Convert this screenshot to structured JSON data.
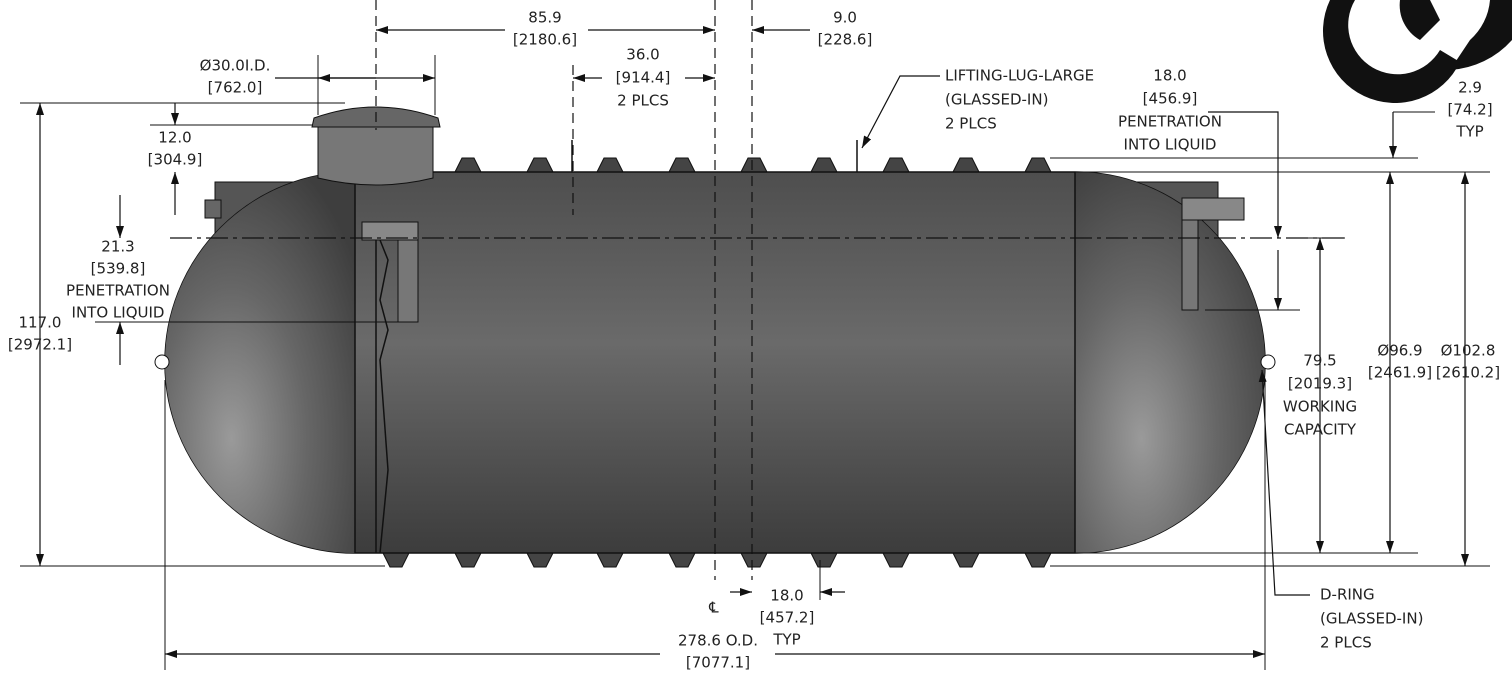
{
  "annotations": [
    {
      "lines": [
        "85.9",
        "[2180.6]"
      ]
    },
    {
      "lines": [
        "36.0",
        "[914.4]",
        "2 PLCS"
      ]
    },
    {
      "lines": [
        "9.0",
        "[228.6]"
      ]
    },
    {
      "lines": [
        "Ø30.0I.D.",
        "[762.0]"
      ]
    },
    {
      "lines": [
        "12.0",
        "[304.9]"
      ]
    },
    {
      "lines": [
        "21.3",
        "[539.8]",
        "PENETRATION",
        "INTO LIQUID"
      ]
    },
    {
      "lines": [
        "117.0",
        "[2972.1]"
      ]
    },
    {
      "lines": [
        "LIFTING-LUG-LARGE",
        "(GLASSED-IN)",
        "2 PLCS"
      ]
    },
    {
      "lines": [
        "18.0",
        "[456.9]",
        "PENETRATION",
        "INTO LIQUID"
      ]
    },
    {
      "lines": [
        "2.9",
        "[74.2]",
        "TYP"
      ]
    },
    {
      "lines": [
        "79.5",
        "[2019.3]",
        "WORKING",
        "CAPACITY"
      ]
    },
    {
      "lines": [
        "Ø96.9",
        "[2461.9]"
      ]
    },
    {
      "lines": [
        "Ø102.8",
        "[2610.2]"
      ]
    },
    {
      "lines": [
        "18.0",
        "[457.2]",
        "TYP"
      ]
    },
    {
      "lines": [
        "℄"
      ]
    },
    {
      "lines": [
        "278.6  O.D.",
        "[7077.1]"
      ]
    },
    {
      "lines": [
        "D-RING",
        "(GLASSED-IN)",
        "2 PLCS"
      ]
    }
  ]
}
